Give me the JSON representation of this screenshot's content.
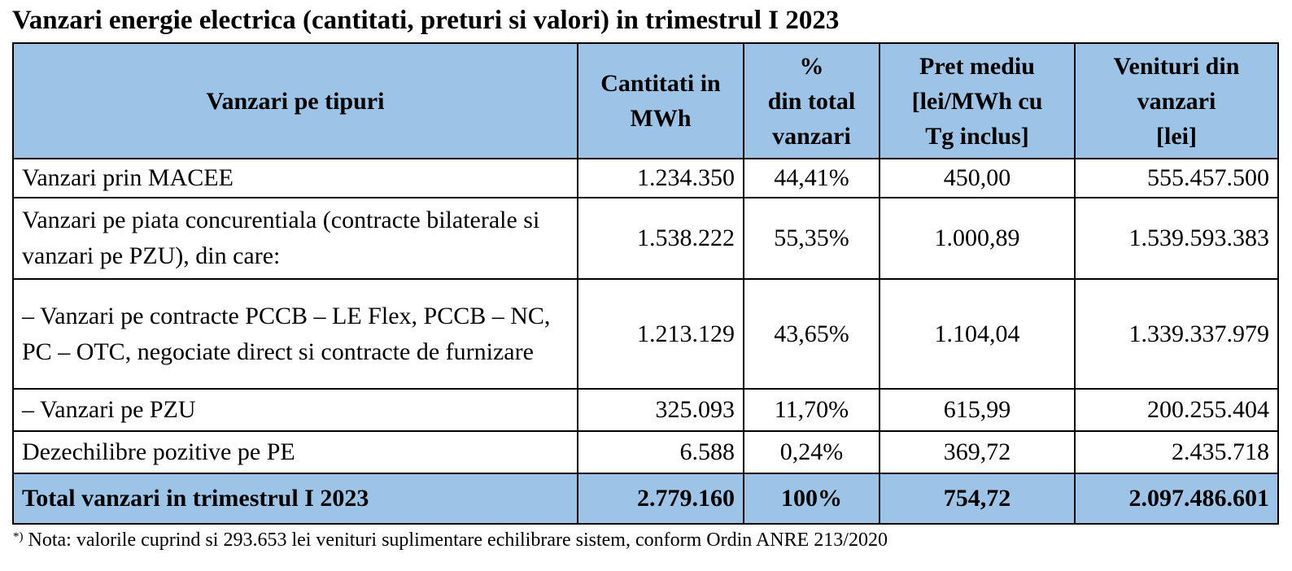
{
  "title": "Vanzari energie electrica (cantitati, preturi si valori) in trimestrul I 2023",
  "table": {
    "headers": {
      "type": "Vanzari pe tipuri",
      "quantity": [
        "Cantitati in",
        "MWh"
      ],
      "percent": [
        "%",
        "din total",
        "vanzari"
      ],
      "price": [
        "Pret mediu",
        "[lei/MWh cu",
        "Tg inclus]"
      ],
      "revenue": [
        "Venituri din",
        "vanzari",
        "[lei]"
      ]
    },
    "rows": [
      {
        "label": "Vanzari prin MACEE",
        "quantity": "1.234.350",
        "percent": "44,41%",
        "price": "450,00",
        "revenue": "555.457.500"
      },
      {
        "label": "Vanzari pe piata concurentiala (contracte bilaterale si vanzari pe PZU), din care:",
        "quantity": "1.538.222",
        "percent": "55,35%",
        "price": "1.000,89",
        "revenue": "1.539.593.383"
      },
      {
        "label": "– Vanzari pe contracte PCCB – LE Flex, PCCB – NC, PC – OTC, negociate direct si contracte de furnizare",
        "quantity": "1.213.129",
        "percent": "43,65%",
        "price": "1.104,04",
        "revenue": "1.339.337.979"
      },
      {
        "label": "– Vanzari pe PZU",
        "quantity": "325.093",
        "percent": "11,70%",
        "price": "615,99",
        "revenue": "200.255.404"
      },
      {
        "label": "Dezechilibre pozitive pe PE",
        "quantity": "6.588",
        "percent": "0,24%",
        "price": "369,72",
        "revenue": "2.435.718"
      }
    ],
    "total": {
      "label": "Total vanzari in trimestrul I 2023",
      "quantity": "2.779.160",
      "percent": "100%",
      "price": "754,72",
      "revenue": "2.097.486.601"
    }
  },
  "footnote": {
    "marker": "*)",
    "text": " Nota: valorile cuprind si 293.653 lei venituri suplimentare echilibrare sistem, conform Ordin ANRE 213/2020"
  },
  "colors": {
    "header_bg": "#9dc3e6",
    "border": "#000000"
  }
}
